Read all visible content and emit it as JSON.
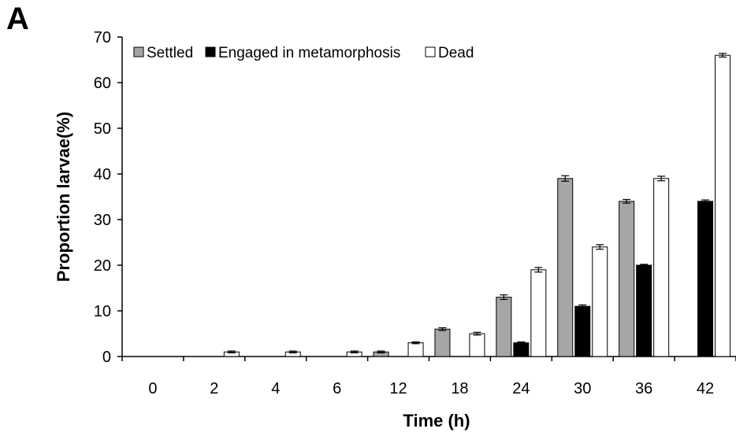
{
  "panel_label": "A",
  "chart_data": {
    "type": "bar",
    "title": "",
    "xlabel": "Time (h)",
    "ylabel": "Proportion larvae(%)",
    "ylim": [
      0,
      70
    ],
    "yticks": [
      0,
      10,
      20,
      30,
      40,
      50,
      60,
      70
    ],
    "grid": false,
    "legend_position": "top-left",
    "categories": [
      "0",
      "2",
      "4",
      "6",
      "12",
      "18",
      "24",
      "30",
      "36",
      "42"
    ],
    "series": [
      {
        "name": "Settled",
        "color": "#a6a6a6",
        "values": [
          0,
          0,
          0,
          0,
          1,
          6,
          13,
          39,
          34,
          0
        ],
        "errors": [
          0,
          0,
          0,
          0,
          0.2,
          0.3,
          0.5,
          0.6,
          0.4,
          0
        ]
      },
      {
        "name": "Engaged in metamorphosis",
        "color": "#000000",
        "values": [
          0,
          0,
          0,
          0,
          0,
          0,
          3,
          11,
          20,
          34
        ],
        "errors": [
          0,
          0,
          0,
          0,
          0,
          0,
          0.2,
          0.3,
          0.2,
          0.3
        ]
      },
      {
        "name": "Dead",
        "color": "#ffffff",
        "values": [
          0,
          1,
          1,
          1,
          3,
          5,
          19,
          24,
          39,
          66
        ],
        "errors": [
          0,
          0.2,
          0.2,
          0.2,
          0.2,
          0.3,
          0.5,
          0.5,
          0.5,
          0.4
        ]
      }
    ]
  }
}
